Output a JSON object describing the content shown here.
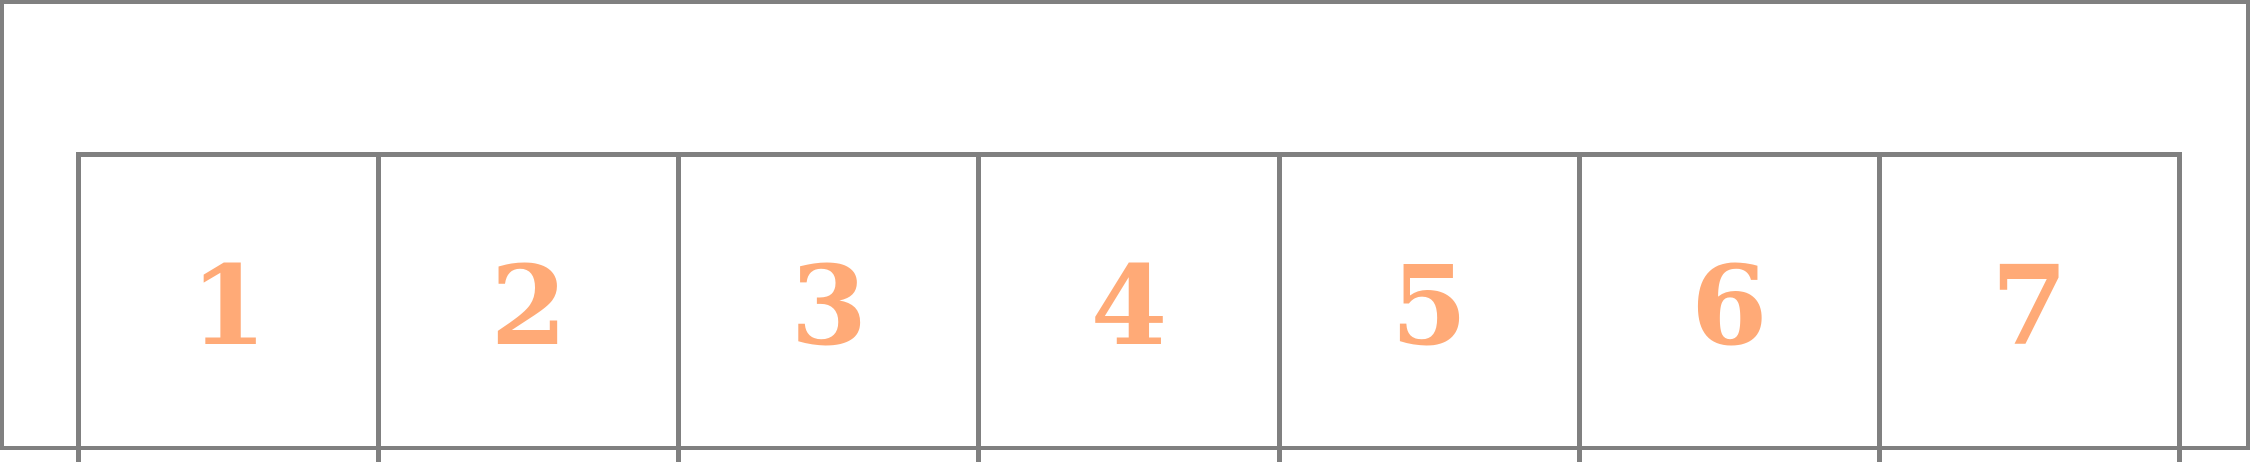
{
  "diagram": {
    "cells": [
      {
        "label": "1"
      },
      {
        "label": "2"
      },
      {
        "label": "3"
      },
      {
        "label": "4"
      },
      {
        "label": "5"
      },
      {
        "label": "6"
      },
      {
        "label": "7"
      }
    ]
  },
  "colors": {
    "border": "#808080",
    "number": "#ffaa77",
    "background": "#ffffff"
  }
}
